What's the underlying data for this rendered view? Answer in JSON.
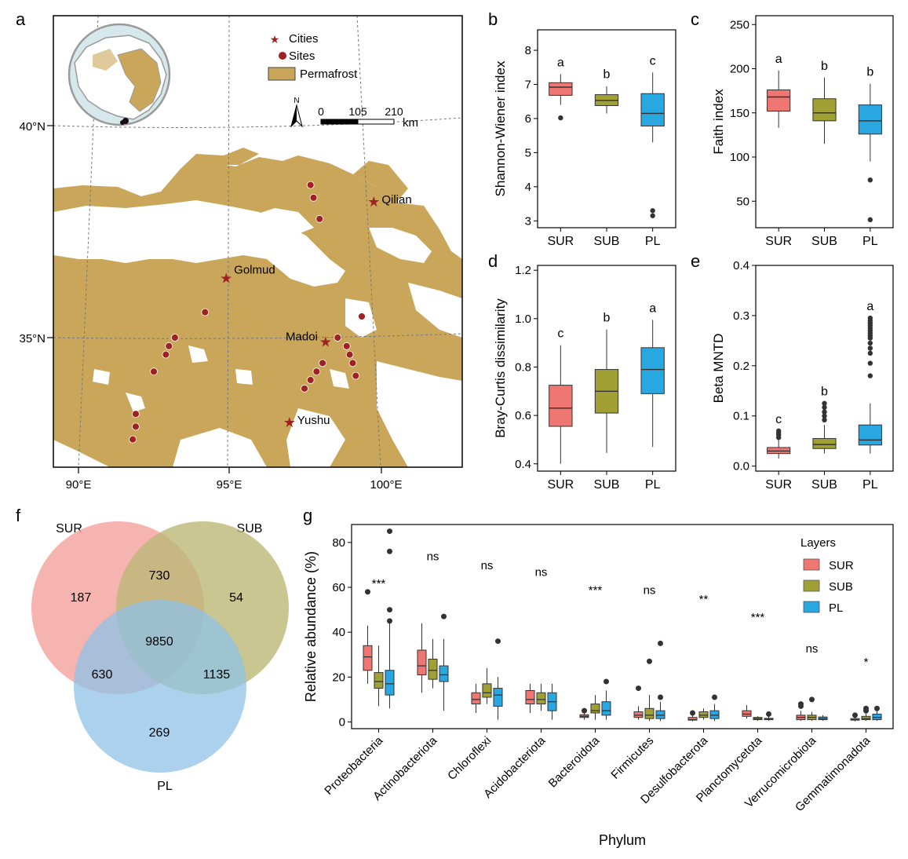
{
  "colors": {
    "SUR": "#F07672",
    "SUB": "#A1A034",
    "PL": "#29A7E1",
    "permafrost": "#C9A65A",
    "marker": "#9E2224",
    "venn_SUR": "#F4A7A2",
    "venn_SUB": "#BDB877",
    "venn_PL": "#8FC1E6"
  },
  "panel_labels": {
    "a": "a",
    "b": "b",
    "c": "c",
    "d": "d",
    "e": "e",
    "f": "f",
    "g": "g"
  },
  "map": {
    "legend": {
      "cities": "Cities",
      "sites": "Sites",
      "permafrost": "Permafrost"
    },
    "scale": {
      "ticks": [
        "0",
        "105",
        "210"
      ],
      "unit": "km"
    },
    "north": "N",
    "lat_labels": [
      "40°N",
      "35°N"
    ],
    "lon_labels": [
      "90°E",
      "95°E",
      "100°E"
    ],
    "cities": [
      {
        "name": "Qilian",
        "lon": 99.8,
        "lat": 38.2
      },
      {
        "name": "Golmud",
        "lon": 94.9,
        "lat": 36.4
      },
      {
        "name": "Madoi",
        "lon": 98.2,
        "lat": 34.9
      },
      {
        "name": "Yushu",
        "lon": 97.0,
        "lat": 33.0
      }
    ],
    "sites": [
      {
        "lon": 97.7,
        "lat": 38.6
      },
      {
        "lon": 97.8,
        "lat": 38.3
      },
      {
        "lon": 98.0,
        "lat": 37.8
      },
      {
        "lon": 94.2,
        "lat": 35.6
      },
      {
        "lon": 93.2,
        "lat": 35.0
      },
      {
        "lon": 93.0,
        "lat": 34.8
      },
      {
        "lon": 92.9,
        "lat": 34.6
      },
      {
        "lon": 92.5,
        "lat": 34.2
      },
      {
        "lon": 91.9,
        "lat": 33.2
      },
      {
        "lon": 91.9,
        "lat": 32.9
      },
      {
        "lon": 91.8,
        "lat": 32.6
      },
      {
        "lon": 98.6,
        "lat": 35.0
      },
      {
        "lon": 98.9,
        "lat": 34.8
      },
      {
        "lon": 99.0,
        "lat": 34.6
      },
      {
        "lon": 99.1,
        "lat": 34.4
      },
      {
        "lon": 99.2,
        "lat": 34.1
      },
      {
        "lon": 99.4,
        "lat": 35.5
      },
      {
        "lon": 98.1,
        "lat": 34.4
      },
      {
        "lon": 97.9,
        "lat": 34.2
      },
      {
        "lon": 97.7,
        "lat": 34.0
      },
      {
        "lon": 97.5,
        "lat": 33.8
      }
    ]
  },
  "chart_data": [
    {
      "panel": "b",
      "type": "box",
      "ylabel": "Shannon-Wiener index",
      "categories": [
        "SUR",
        "SUB",
        "PL"
      ],
      "ylim": [
        2.8,
        8.6
      ],
      "yticks": [
        3,
        4,
        5,
        6,
        7,
        8
      ],
      "boxes": [
        {
          "group": "SUR",
          "min": 6.4,
          "q1": 6.68,
          "median": 6.92,
          "q3": 7.05,
          "max": 7.3,
          "outliers": [
            6.02
          ]
        },
        {
          "group": "SUB",
          "min": 6.15,
          "q1": 6.38,
          "median": 6.53,
          "q3": 6.7,
          "max": 6.95,
          "outliers": []
        },
        {
          "group": "PL",
          "min": 5.3,
          "q1": 5.78,
          "median": 6.15,
          "q3": 6.73,
          "max": 7.35,
          "outliers": [
            3.3,
            3.15
          ]
        }
      ],
      "letters": [
        "a",
        "b",
        "c"
      ]
    },
    {
      "panel": "c",
      "type": "box",
      "ylabel": "Faith index",
      "categories": [
        "SUR",
        "SUB",
        "PL"
      ],
      "ylim": [
        20,
        260
      ],
      "yticks": [
        50,
        100,
        150,
        200,
        250
      ],
      "boxes": [
        {
          "group": "SUR",
          "min": 133,
          "q1": 152,
          "median": 168,
          "q3": 176,
          "max": 198,
          "outliers": []
        },
        {
          "group": "SUB",
          "min": 115,
          "q1": 141,
          "median": 150,
          "q3": 166,
          "max": 190,
          "outliers": []
        },
        {
          "group": "PL",
          "min": 95,
          "q1": 126,
          "median": 141,
          "q3": 159,
          "max": 183,
          "outliers": [
            74,
            29
          ]
        }
      ],
      "letters": [
        "a",
        "b",
        "b"
      ]
    },
    {
      "panel": "d",
      "type": "box",
      "ylabel": "Bray-Curtis dissimilarity",
      "categories": [
        "SUR",
        "SUB",
        "PL"
      ],
      "ylim": [
        0.37,
        1.22
      ],
      "yticks": [
        0.4,
        0.6,
        0.8,
        1.0,
        1.2
      ],
      "ytick_labels": [
        "0.4",
        "0.6",
        "0.8",
        "1.0",
        "1.2"
      ],
      "boxes": [
        {
          "group": "SUR",
          "min": 0.4,
          "q1": 0.555,
          "median": 0.63,
          "q3": 0.725,
          "max": 0.89,
          "outliers": []
        },
        {
          "group": "SUB",
          "min": 0.445,
          "q1": 0.61,
          "median": 0.7,
          "q3": 0.79,
          "max": 0.955,
          "outliers": []
        },
        {
          "group": "PL",
          "min": 0.47,
          "q1": 0.69,
          "median": 0.79,
          "q3": 0.88,
          "max": 0.995,
          "outliers": []
        }
      ],
      "letters": [
        "c",
        "b",
        "a"
      ]
    },
    {
      "panel": "e",
      "type": "box",
      "ylabel": "Beta MNTD",
      "categories": [
        "SUR",
        "SUB",
        "PL"
      ],
      "ylim": [
        -0.01,
        0.4
      ],
      "yticks": [
        0.0,
        0.1,
        0.2,
        0.3,
        0.4
      ],
      "ytick_labels": [
        "0.0",
        "0.1",
        "0.2",
        "0.3",
        "0.4"
      ],
      "boxes": [
        {
          "group": "SUR",
          "min": 0.015,
          "q1": 0.025,
          "median": 0.03,
          "q3": 0.037,
          "max": 0.052,
          "outliers": [
            0.057,
            0.062,
            0.066,
            0.07
          ]
        },
        {
          "group": "SUB",
          "min": 0.025,
          "q1": 0.035,
          "median": 0.043,
          "q3": 0.055,
          "max": 0.082,
          "outliers": [
            0.092,
            0.1,
            0.108,
            0.117,
            0.125
          ]
        },
        {
          "group": "PL",
          "min": 0.025,
          "q1": 0.042,
          "median": 0.052,
          "q3": 0.082,
          "max": 0.125,
          "outliers": [
            0.18,
            0.205,
            0.225,
            0.235,
            0.245,
            0.255,
            0.26,
            0.265,
            0.27,
            0.275,
            0.28,
            0.285,
            0.29,
            0.295
          ]
        }
      ],
      "letters": [
        "c",
        "b",
        "a"
      ]
    },
    {
      "panel": "f",
      "type": "venn",
      "sets": [
        "SUR",
        "SUB",
        "PL"
      ],
      "regions": {
        "SUR_only": "187",
        "SUB_only": "54",
        "PL_only": "269",
        "SUR_SUB": "730",
        "SUR_PL": "630",
        "SUB_PL": "1135",
        "all": "9850"
      }
    },
    {
      "panel": "g",
      "type": "box",
      "xlabel": "Phylum",
      "ylabel": "Relative abundance (%)",
      "ylim": [
        -3,
        88
      ],
      "yticks": [
        0,
        20,
        40,
        60,
        80
      ],
      "legend": {
        "title": "Layers",
        "entries": [
          "SUR",
          "SUB",
          "PL"
        ],
        "position": "top-right"
      },
      "categories": [
        "Proteobacteria",
        "Actinobacteriota",
        "Chloroflexi",
        "Acidobacteriota",
        "Bacteroidota",
        "Firmicutes",
        "Desulfobacterota",
        "Planctomycetota",
        "Verrucomicrobiota",
        "Gemmatimonadota"
      ],
      "significance": [
        "***",
        "ns",
        "ns",
        "ns",
        "***",
        "ns",
        "**",
        "***",
        "ns",
        "*"
      ],
      "boxes": [
        [
          {
            "group": "SUR",
            "min": 17,
            "q1": 23,
            "median": 29,
            "q3": 34,
            "max": 43,
            "outliers": [
              58
            ]
          },
          {
            "group": "SUB",
            "min": 7,
            "q1": 15,
            "median": 18,
            "q3": 22,
            "max": 34,
            "outliers": []
          },
          {
            "group": "PL",
            "min": 6,
            "q1": 12,
            "median": 17,
            "q3": 23,
            "max": 44,
            "outliers": [
              45,
              50,
              76,
              85
            ]
          }
        ],
        [
          {
            "group": "SUR",
            "min": 13,
            "q1": 21,
            "median": 25,
            "q3": 32,
            "max": 44,
            "outliers": []
          },
          {
            "group": "SUB",
            "min": 15,
            "q1": 19,
            "median": 23,
            "q3": 28,
            "max": 37,
            "outliers": []
          },
          {
            "group": "PL",
            "min": 5,
            "q1": 18,
            "median": 21,
            "q3": 25,
            "max": 37,
            "outliers": [
              47
            ]
          }
        ],
        [
          {
            "group": "SUR",
            "min": 4,
            "q1": 8,
            "median": 10,
            "q3": 13,
            "max": 17,
            "outliers": []
          },
          {
            "group": "SUB",
            "min": 8,
            "q1": 11,
            "median": 13,
            "q3": 17,
            "max": 24,
            "outliers": []
          },
          {
            "group": "PL",
            "min": 1,
            "q1": 7,
            "median": 12,
            "q3": 15,
            "max": 20,
            "outliers": [
              36
            ]
          }
        ],
        [
          {
            "group": "SUR",
            "min": 4,
            "q1": 8,
            "median": 10,
            "q3": 14,
            "max": 17,
            "outliers": []
          },
          {
            "group": "SUB",
            "min": 5,
            "q1": 8,
            "median": 10,
            "q3": 13,
            "max": 17,
            "outliers": []
          },
          {
            "group": "PL",
            "min": 1,
            "q1": 5,
            "median": 9,
            "q3": 13,
            "max": 17,
            "outliers": []
          }
        ],
        [
          {
            "group": "SUR",
            "min": 1,
            "q1": 2,
            "median": 2.5,
            "q3": 3.2,
            "max": 4,
            "outliers": [
              5
            ]
          },
          {
            "group": "SUB",
            "min": 1,
            "q1": 4,
            "median": 5,
            "q3": 8,
            "max": 12,
            "outliers": []
          },
          {
            "group": "PL",
            "min": 1,
            "q1": 3,
            "median": 5,
            "q3": 9,
            "max": 14,
            "outliers": [
              18
            ]
          }
        ],
        [
          {
            "group": "SUR",
            "min": 1,
            "q1": 2,
            "median": 3,
            "q3": 4.5,
            "max": 7,
            "outliers": [
              15
            ]
          },
          {
            "group": "SUB",
            "min": 0.5,
            "q1": 1.5,
            "median": 3,
            "q3": 6,
            "max": 12,
            "outliers": [
              27
            ]
          },
          {
            "group": "PL",
            "min": 0.5,
            "q1": 1.5,
            "median": 3,
            "q3": 5,
            "max": 9,
            "outliers": [
              11,
              35
            ]
          }
        ],
        [
          {
            "group": "SUR",
            "min": 0.3,
            "q1": 0.8,
            "median": 1,
            "q3": 2,
            "max": 3,
            "outliers": [
              4
            ]
          },
          {
            "group": "SUB",
            "min": 1,
            "q1": 2,
            "median": 3,
            "q3": 4.5,
            "max": 6,
            "outliers": []
          },
          {
            "group": "PL",
            "min": 0.5,
            "q1": 1.5,
            "median": 3,
            "q3": 5,
            "max": 8,
            "outliers": [
              11
            ]
          }
        ],
        [
          {
            "group": "SUR",
            "min": 1.5,
            "q1": 2.5,
            "median": 3.5,
            "q3": 5,
            "max": 7.5,
            "outliers": []
          },
          {
            "group": "SUB",
            "min": 0.5,
            "q1": 1,
            "median": 1.5,
            "q3": 2,
            "max": 2.5,
            "outliers": []
          },
          {
            "group": "PL",
            "min": 0.5,
            "q1": 1,
            "median": 1.2,
            "q3": 1.6,
            "max": 2.5,
            "outliers": [
              3.5
            ]
          }
        ],
        [
          {
            "group": "SUR",
            "min": 0.5,
            "q1": 1,
            "median": 2,
            "q3": 3,
            "max": 5,
            "outliers": [
              7,
              8
            ]
          },
          {
            "group": "SUB",
            "min": 0.5,
            "q1": 1,
            "median": 2,
            "q3": 3,
            "max": 4.5,
            "outliers": [
              10
            ]
          },
          {
            "group": "PL",
            "min": 0.5,
            "q1": 1,
            "median": 1.5,
            "q3": 2.2,
            "max": 3,
            "outliers": []
          }
        ],
        [
          {
            "group": "SUR",
            "min": 0.3,
            "q1": 0.8,
            "median": 1,
            "q3": 1.5,
            "max": 2,
            "outliers": [
              3
            ]
          },
          {
            "group": "SUB",
            "min": 0.5,
            "q1": 1,
            "median": 1.5,
            "q3": 2.5,
            "max": 4,
            "outliers": [
              5,
              6
            ]
          },
          {
            "group": "PL",
            "min": 0.5,
            "q1": 1,
            "median": 2,
            "q3": 3.5,
            "max": 5,
            "outliers": [
              6
            ]
          }
        ]
      ]
    }
  ]
}
